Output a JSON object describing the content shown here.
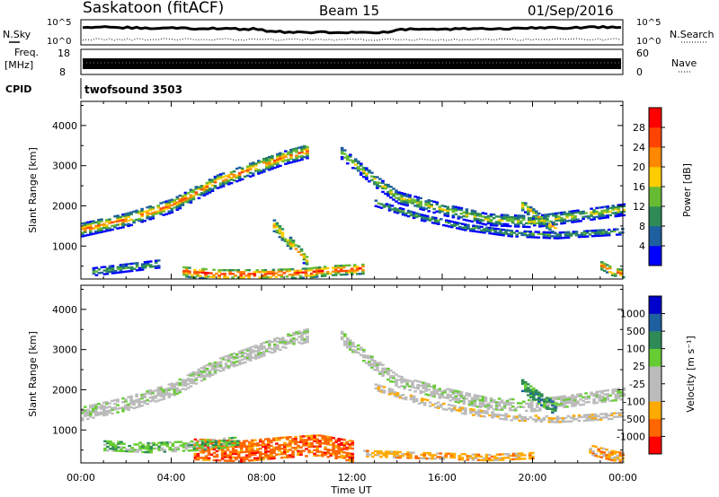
{
  "header": {
    "station": "Saskatoon (fitACF)",
    "beam": "Beam 15",
    "date": "01/Sep/2016"
  },
  "summary_panels": {
    "nsky": {
      "label": "N.Sky",
      "ticks": [
        "10^5",
        "10^0"
      ]
    },
    "nsearch": {
      "label": "N.Search",
      "ticks": [
        "10^5",
        "10^0"
      ]
    },
    "freq": {
      "label_top": "Freq.",
      "label_unit": "[MHz]",
      "ticks": [
        "18",
        "8"
      ]
    },
    "nave": {
      "label": "Nave",
      "ticks": [
        "60",
        "0"
      ]
    },
    "cpid": {
      "label": "CPID",
      "value": "twofsound 3503"
    }
  },
  "colors": {
    "power": [
      "#0000ff",
      "#1e5fa0",
      "#2e8b57",
      "#66bb33",
      "#ffcc00",
      "#ff8800",
      "#ff4400",
      "#ff0000"
    ],
    "velocity": [
      "#ff0000",
      "#ff6600",
      "#ffaa00",
      "#bbbbbb",
      "#bbbbbb",
      "#66cc33",
      "#2e8b57",
      "#1e5fa0",
      "#0000cc"
    ]
  },
  "chart_data": [
    {
      "type": "heatmap",
      "name": "power",
      "ylabel": "Slant Range [km]",
      "ylim": [
        180,
        4600
      ],
      "yticks": [
        1000,
        2000,
        3000,
        4000
      ],
      "xlim": [
        0,
        24
      ],
      "xticks": [
        "00:00",
        "04:00",
        "08:00",
        "12:00",
        "16:00",
        "20:00",
        "00:00"
      ],
      "colorbar_label": "Power [dB]",
      "colorbar_ticks": [
        "28",
        "24",
        "20",
        "16",
        "12",
        "8",
        "4"
      ],
      "colorbar_range": [
        0,
        32
      ],
      "bands": [
        {
          "t": [
            0,
            2,
            4,
            6,
            8,
            9,
            10
          ],
          "r": [
            1400,
            1650,
            2000,
            2600,
            3000,
            3200,
            3350
          ],
          "width": 350,
          "pmin": 4,
          "pmax": 28
        },
        {
          "t": [
            11.5,
            13,
            14,
            16,
            18,
            20,
            22,
            24
          ],
          "r": [
            3300,
            2600,
            2200,
            1900,
            1650,
            1600,
            1750,
            1900
          ],
          "width": 300,
          "pmin": 4,
          "pmax": 20
        },
        {
          "t": [
            13,
            15,
            17,
            19,
            21,
            24
          ],
          "r": [
            2050,
            1700,
            1450,
            1300,
            1250,
            1350
          ],
          "width": 150,
          "pmin": 4,
          "pmax": 16
        },
        {
          "t": [
            4.5,
            6,
            8,
            10,
            11,
            12.5
          ],
          "r": [
            350,
            280,
            280,
            320,
            380,
            420
          ],
          "width": 250,
          "pmin": 12,
          "pmax": 31
        },
        {
          "t": [
            0.5,
            2,
            3.5
          ],
          "r": [
            350,
            450,
            550
          ],
          "width": 200,
          "pmin": 4,
          "pmax": 16
        },
        {
          "t": [
            8.5,
            9,
            9.5,
            10
          ],
          "r": [
            1500,
            1200,
            900,
            600
          ],
          "width": 300,
          "pmin": 8,
          "pmax": 24
        },
        {
          "t": [
            19.5,
            20.2,
            21
          ],
          "r": [
            2000,
            1700,
            1400
          ],
          "width": 250,
          "pmin": 8,
          "pmax": 24
        },
        {
          "t": [
            23,
            23.5,
            24
          ],
          "r": [
            500,
            350,
            300
          ],
          "width": 200,
          "pmin": 12,
          "pmax": 30
        }
      ]
    },
    {
      "type": "heatmap",
      "name": "velocity",
      "ylabel": "Slant Range [km]",
      "xlabel": "Time UT",
      "ylim": [
        180,
        4600
      ],
      "yticks": [
        1000,
        2000,
        3000,
        4000
      ],
      "xlim": [
        0,
        24
      ],
      "xticks": [
        "00:00",
        "04:00",
        "08:00",
        "12:00",
        "16:00",
        "20:00",
        "00:00"
      ],
      "colorbar_label": "Velocity [m s⁻¹]",
      "colorbar_ticks": [
        "1000",
        "500",
        "100",
        "25",
        "-25",
        "-100",
        "-500",
        "-1000"
      ],
      "bands": [
        {
          "t": [
            0,
            2,
            4,
            6,
            8,
            9,
            10
          ],
          "r": [
            1400,
            1650,
            2000,
            2600,
            3000,
            3200,
            3350
          ],
          "width": 350,
          "vlevel": 4
        },
        {
          "t": [
            11.5,
            13,
            14,
            16,
            18,
            20,
            22,
            24
          ],
          "r": [
            3300,
            2600,
            2200,
            1900,
            1650,
            1600,
            1750,
            1900
          ],
          "width": 300,
          "vlevel": 4
        },
        {
          "t": [
            13,
            15,
            17,
            19,
            21,
            24
          ],
          "r": [
            2050,
            1700,
            1450,
            1300,
            1250,
            1350
          ],
          "width": 150,
          "vlevel": 3
        },
        {
          "t": [
            5,
            7,
            9,
            10.5,
            12
          ],
          "r": [
            500,
            450,
            550,
            600,
            450
          ],
          "width": 500,
          "vlevel": 1
        },
        {
          "t": [
            1,
            3,
            5,
            7
          ],
          "r": [
            600,
            550,
            600,
            700
          ],
          "width": 250,
          "vlevel": 5
        },
        {
          "t": [
            19.5,
            20.2,
            21
          ],
          "r": [
            2100,
            1800,
            1500
          ],
          "width": 300,
          "vlevel": 6
        },
        {
          "t": [
            22.5,
            23.5,
            24
          ],
          "r": [
            500,
            350,
            300
          ],
          "width": 250,
          "vlevel": 2
        },
        {
          "t": [
            12.5,
            15,
            18,
            20
          ],
          "r": [
            400,
            350,
            300,
            350
          ],
          "width": 150,
          "vlevel": 2
        }
      ]
    }
  ]
}
